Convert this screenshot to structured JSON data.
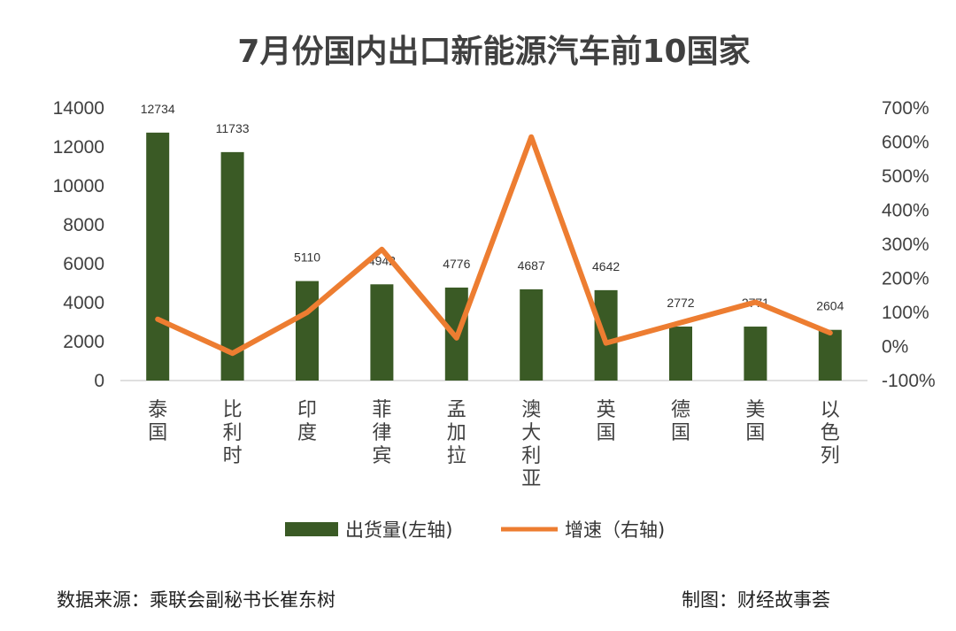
{
  "chart_data": {
    "type": "bar+line",
    "title": "7月份国内出口新能源汽车前10国家",
    "categories": [
      "泰国",
      "比利时",
      "印度",
      "菲律宾",
      "孟加拉",
      "澳大利亚",
      "英国",
      "德国",
      "美国",
      "以色列"
    ],
    "series": [
      {
        "name": "出货量(左轴)",
        "type": "bar",
        "axis": "left",
        "color": "#3a5a25",
        "values": [
          12734,
          11733,
          5110,
          4942,
          4776,
          4687,
          4642,
          2772,
          2771,
          2604
        ]
      },
      {
        "name": "增速（右轴)",
        "type": "line",
        "axis": "right",
        "color": "#ed7d31",
        "values": [
          80,
          -20,
          100,
          285,
          25,
          615,
          10,
          70,
          130,
          40
        ]
      }
    ],
    "left_axis": {
      "min": 0,
      "max": 14000,
      "step": 2000,
      "ticks": [
        "0",
        "2000",
        "4000",
        "6000",
        "8000",
        "10000",
        "12000",
        "14000"
      ]
    },
    "right_axis": {
      "min": -100,
      "max": 700,
      "step": 100,
      "ticks": [
        "-100%",
        "0%",
        "100%",
        "200%",
        "300%",
        "400%",
        "500%",
        "600%",
        "700%"
      ]
    },
    "legend": [
      "出货量(左轴)",
      "增速（右轴)"
    ],
    "legend_position": "bottom",
    "grid": false
  },
  "footer": {
    "source": "数据来源：乘联会副秘书长崔东树",
    "credit": "制图：财经故事荟"
  }
}
